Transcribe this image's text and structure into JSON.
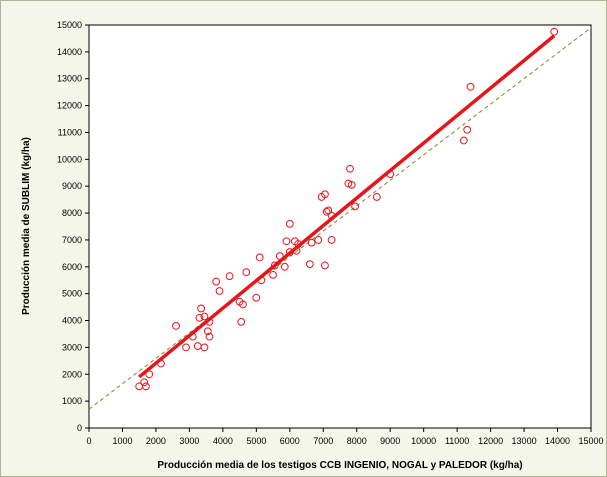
{
  "chart_data": {
    "type": "scatter",
    "xlabel": "Producción media de los testigos CCB INGENIO, NOGAL y PALEDOR (kg/ha)",
    "ylabel": "Producción media de SUBLIM (kg/ha)",
    "xlim": [
      0,
      15000
    ],
    "ylim": [
      0,
      15000
    ],
    "x_ticks": [
      "0",
      "1000",
      "2000",
      "3000",
      "4000",
      "5000",
      "6000",
      "7000",
      "8000",
      "9000",
      "10000",
      "11000",
      "12000",
      "13000",
      "14000",
      "15000"
    ],
    "y_ticks": [
      "0",
      "1000",
      "2000",
      "3000",
      "4000",
      "5000",
      "6000",
      "7000",
      "8000",
      "9000",
      "10000",
      "11000",
      "12000",
      "13000",
      "14000",
      "15000"
    ],
    "grid": false,
    "legend": "none",
    "marker_color": "#e8141c",
    "trend_color": "#e8141c",
    "reference_color": "#7a8a2a",
    "points": [
      [
        1500,
        1550
      ],
      [
        1650,
        1700
      ],
      [
        1700,
        1550
      ],
      [
        1800,
        2000
      ],
      [
        2150,
        2400
      ],
      [
        2600,
        3800
      ],
      [
        2900,
        3000
      ],
      [
        3100,
        3400
      ],
      [
        3250,
        3050
      ],
      [
        3300,
        4100
      ],
      [
        3350,
        4450
      ],
      [
        3450,
        4150
      ],
      [
        3450,
        3000
      ],
      [
        3550,
        3600
      ],
      [
        3600,
        3400
      ],
      [
        3600,
        3950
      ],
      [
        3800,
        5450
      ],
      [
        3900,
        5100
      ],
      [
        4200,
        5650
      ],
      [
        4500,
        4700
      ],
      [
        4550,
        3950
      ],
      [
        4600,
        4600
      ],
      [
        4700,
        5800
      ],
      [
        5000,
        4850
      ],
      [
        5100,
        6350
      ],
      [
        5150,
        5500
      ],
      [
        5500,
        5700
      ],
      [
        5550,
        6050
      ],
      [
        5700,
        6400
      ],
      [
        5850,
        6000
      ],
      [
        5900,
        6950
      ],
      [
        6000,
        6550
      ],
      [
        6000,
        7600
      ],
      [
        6150,
        6950
      ],
      [
        6200,
        6600
      ],
      [
        6250,
        6850
      ],
      [
        6600,
        6100
      ],
      [
        6650,
        6900
      ],
      [
        6850,
        7000
      ],
      [
        6950,
        8600
      ],
      [
        7050,
        6050
      ],
      [
        7050,
        8700
      ],
      [
        7100,
        8050
      ],
      [
        7150,
        8100
      ],
      [
        7250,
        7000
      ],
      [
        7250,
        7900
      ],
      [
        7750,
        9100
      ],
      [
        7800,
        9650
      ],
      [
        7850,
        9050
      ],
      [
        7950,
        8250
      ],
      [
        8600,
        8600
      ],
      [
        9000,
        9450
      ],
      [
        11200,
        10700
      ],
      [
        11300,
        11100
      ],
      [
        11400,
        12700
      ],
      [
        13900,
        14750
      ]
    ],
    "trend_line": [
      [
        1500,
        1900
      ],
      [
        13900,
        14600
      ]
    ],
    "reference_line": [
      [
        0,
        700
      ],
      [
        15000,
        14900
      ]
    ]
  }
}
